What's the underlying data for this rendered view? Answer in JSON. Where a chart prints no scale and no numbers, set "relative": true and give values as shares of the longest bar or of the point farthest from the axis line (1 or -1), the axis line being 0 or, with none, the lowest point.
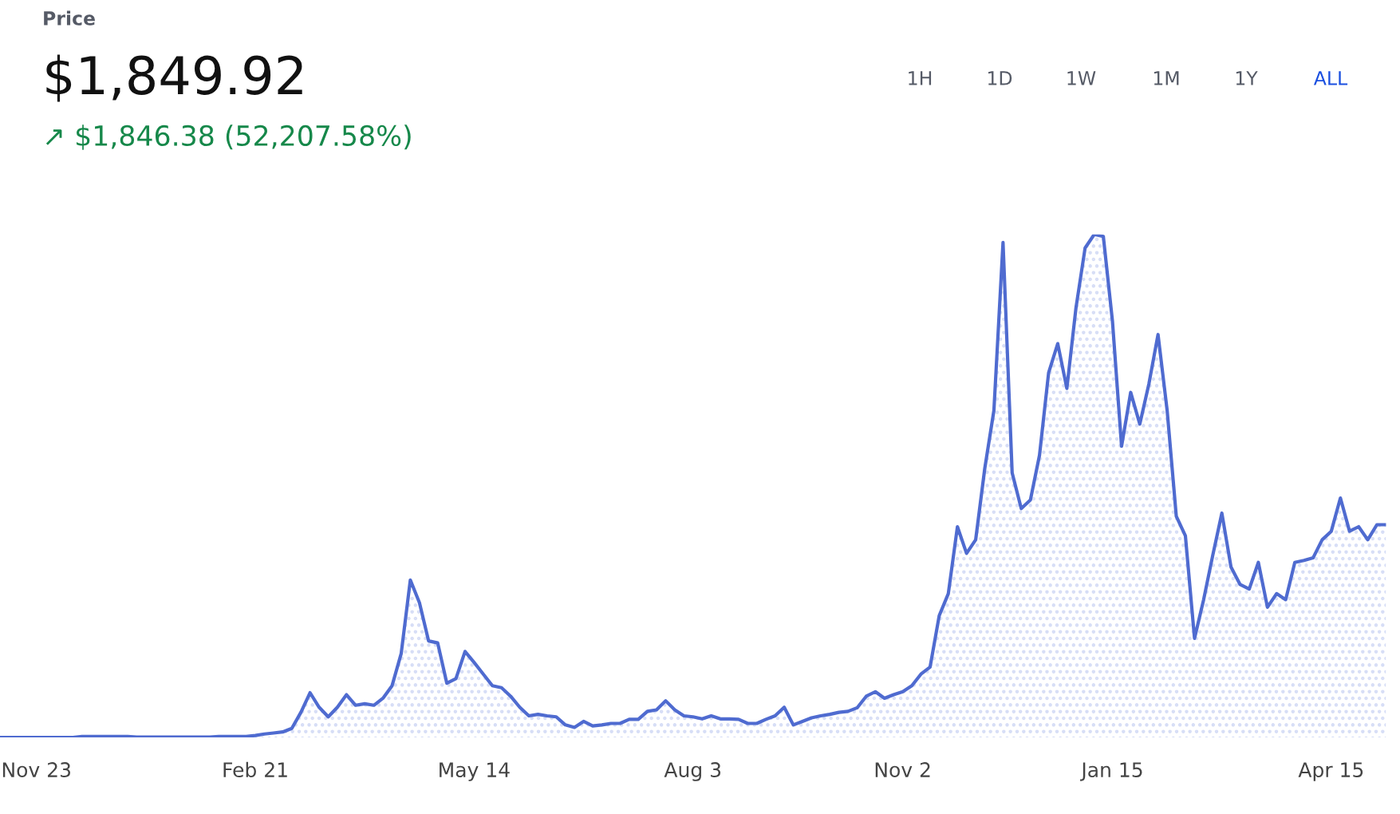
{
  "chart_data": {
    "type": "area",
    "relative": true,
    "title": "Price",
    "subtitle": "$1,849.92",
    "annotations": [
      "↗ $1,846.38 (52,207.58%)",
      "1H",
      "1D",
      "1W",
      "1M",
      "1Y",
      "ALL"
    ],
    "categories": [
      null,
      null,
      null,
      null,
      "Nov 23",
      null,
      null,
      null,
      null,
      null,
      null,
      null,
      null,
      null,
      null,
      null,
      null,
      null,
      null,
      null,
      null,
      null,
      null,
      null,
      null,
      null,
      null,
      null,
      "Feb 21",
      null,
      null,
      null,
      null,
      null,
      null,
      null,
      null,
      null,
      null,
      null,
      null,
      null,
      null,
      null,
      null,
      null,
      null,
      null,
      null,
      null,
      null,
      null,
      "May 14",
      null,
      null,
      null,
      null,
      null,
      null,
      null,
      null,
      null,
      null,
      null,
      null,
      null,
      null,
      null,
      null,
      null,
      null,
      null,
      null,
      null,
      null,
      null,
      "Aug 3",
      null,
      null,
      null,
      null,
      null,
      null,
      null,
      null,
      null,
      null,
      null,
      null,
      null,
      null,
      null,
      null,
      null,
      null,
      null,
      null,
      null,
      null,
      "Nov 2",
      null,
      null,
      null,
      null,
      null,
      null,
      null,
      null,
      null,
      null,
      null,
      null,
      null,
      null,
      null,
      null,
      null,
      null,
      null,
      null,
      null,
      null,
      "Jan 15",
      null,
      null,
      null,
      null,
      null,
      null,
      null,
      null,
      null,
      null,
      null,
      null,
      null,
      null,
      null,
      null,
      null,
      null,
      null,
      null,
      null,
      null,
      null,
      "Apr 15",
      null,
      null,
      null,
      null,
      null,
      null
    ],
    "series": [
      {
        "color": "#4f6bd0",
        "values": [
          0,
          0,
          0,
          0,
          0,
          0,
          0,
          0,
          0,
          0.002,
          0.002,
          0.002,
          0.002,
          0.002,
          0.002,
          0.001,
          0.001,
          0.001,
          0.001,
          0.001,
          0.001,
          0.001,
          0.001,
          0.001,
          0.002,
          0.002,
          0.002,
          0.002,
          0.004,
          0.007,
          0.009,
          0.011,
          0.018,
          0.05,
          0.089,
          0.06,
          0.041,
          0.06,
          0.085,
          0.064,
          0.067,
          0.064,
          0.078,
          0.103,
          0.167,
          0.313,
          0.268,
          0.192,
          0.188,
          0.108,
          0.117,
          0.171,
          0.149,
          0.126,
          0.103,
          0.099,
          0.082,
          0.06,
          0.043,
          0.046,
          0.043,
          0.041,
          0.025,
          0.02,
          0.032,
          0.023,
          0.025,
          0.028,
          0.028,
          0.036,
          0.036,
          0.052,
          0.055,
          0.073,
          0.055,
          0.043,
          0.041,
          0.037,
          0.043,
          0.037,
          0.037,
          0.036,
          0.028,
          0.028,
          0.036,
          0.043,
          0.06,
          0.025,
          0.032,
          0.039,
          0.043,
          0.046,
          0.05,
          0.052,
          0.059,
          0.082,
          0.091,
          0.078,
          0.085,
          0.091,
          0.103,
          0.126,
          0.14,
          0.242,
          0.286,
          0.419,
          0.366,
          0.393,
          0.535,
          0.65,
          0.984,
          0.526,
          0.455,
          0.472,
          0.561,
          0.725,
          0.783,
          0.694,
          0.854,
          0.973,
          1.0,
          0.996,
          0.828,
          0.579,
          0.686,
          0.623,
          0.703,
          0.801,
          0.65,
          0.44,
          0.401,
          0.197,
          0.274,
          0.362,
          0.446,
          0.339,
          0.304,
          0.295,
          0.348,
          0.259,
          0.286,
          0.274,
          0.348,
          0.352,
          0.357,
          0.393,
          0.41,
          0.476,
          0.41,
          0.419,
          0.393,
          0.423,
          0.423
        ]
      }
    ],
    "grid": false,
    "legend": false
  }
}
